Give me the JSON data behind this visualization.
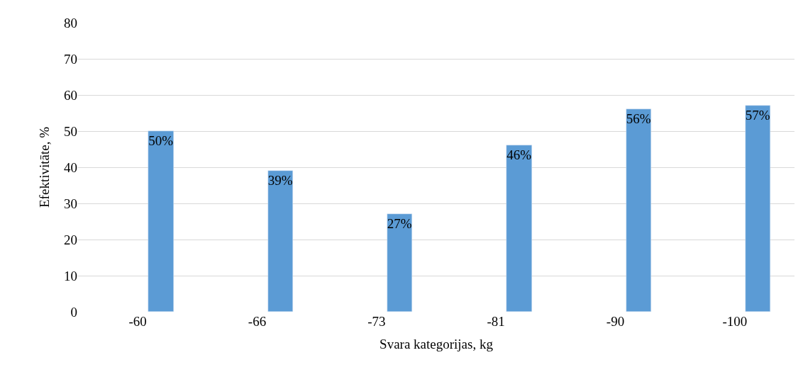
{
  "chart_data": {
    "type": "bar",
    "xlabel": "Svara kategorijas, kg",
    "ylabel": "Efektivitāte, %",
    "categories": [
      "-60",
      "-66",
      "-73",
      "-81",
      "-90",
      "-100"
    ],
    "values": [
      50,
      39,
      27,
      46,
      56,
      57
    ],
    "value_labels": [
      "50%",
      "39%",
      "27%",
      "46%",
      "56%",
      "57%"
    ],
    "color": "#5b9bd5",
    "ylim": [
      0,
      80
    ],
    "yticks": [
      0,
      10,
      20,
      30,
      40,
      50,
      60,
      70,
      80
    ],
    "grid": "y",
    "legend": false
  }
}
